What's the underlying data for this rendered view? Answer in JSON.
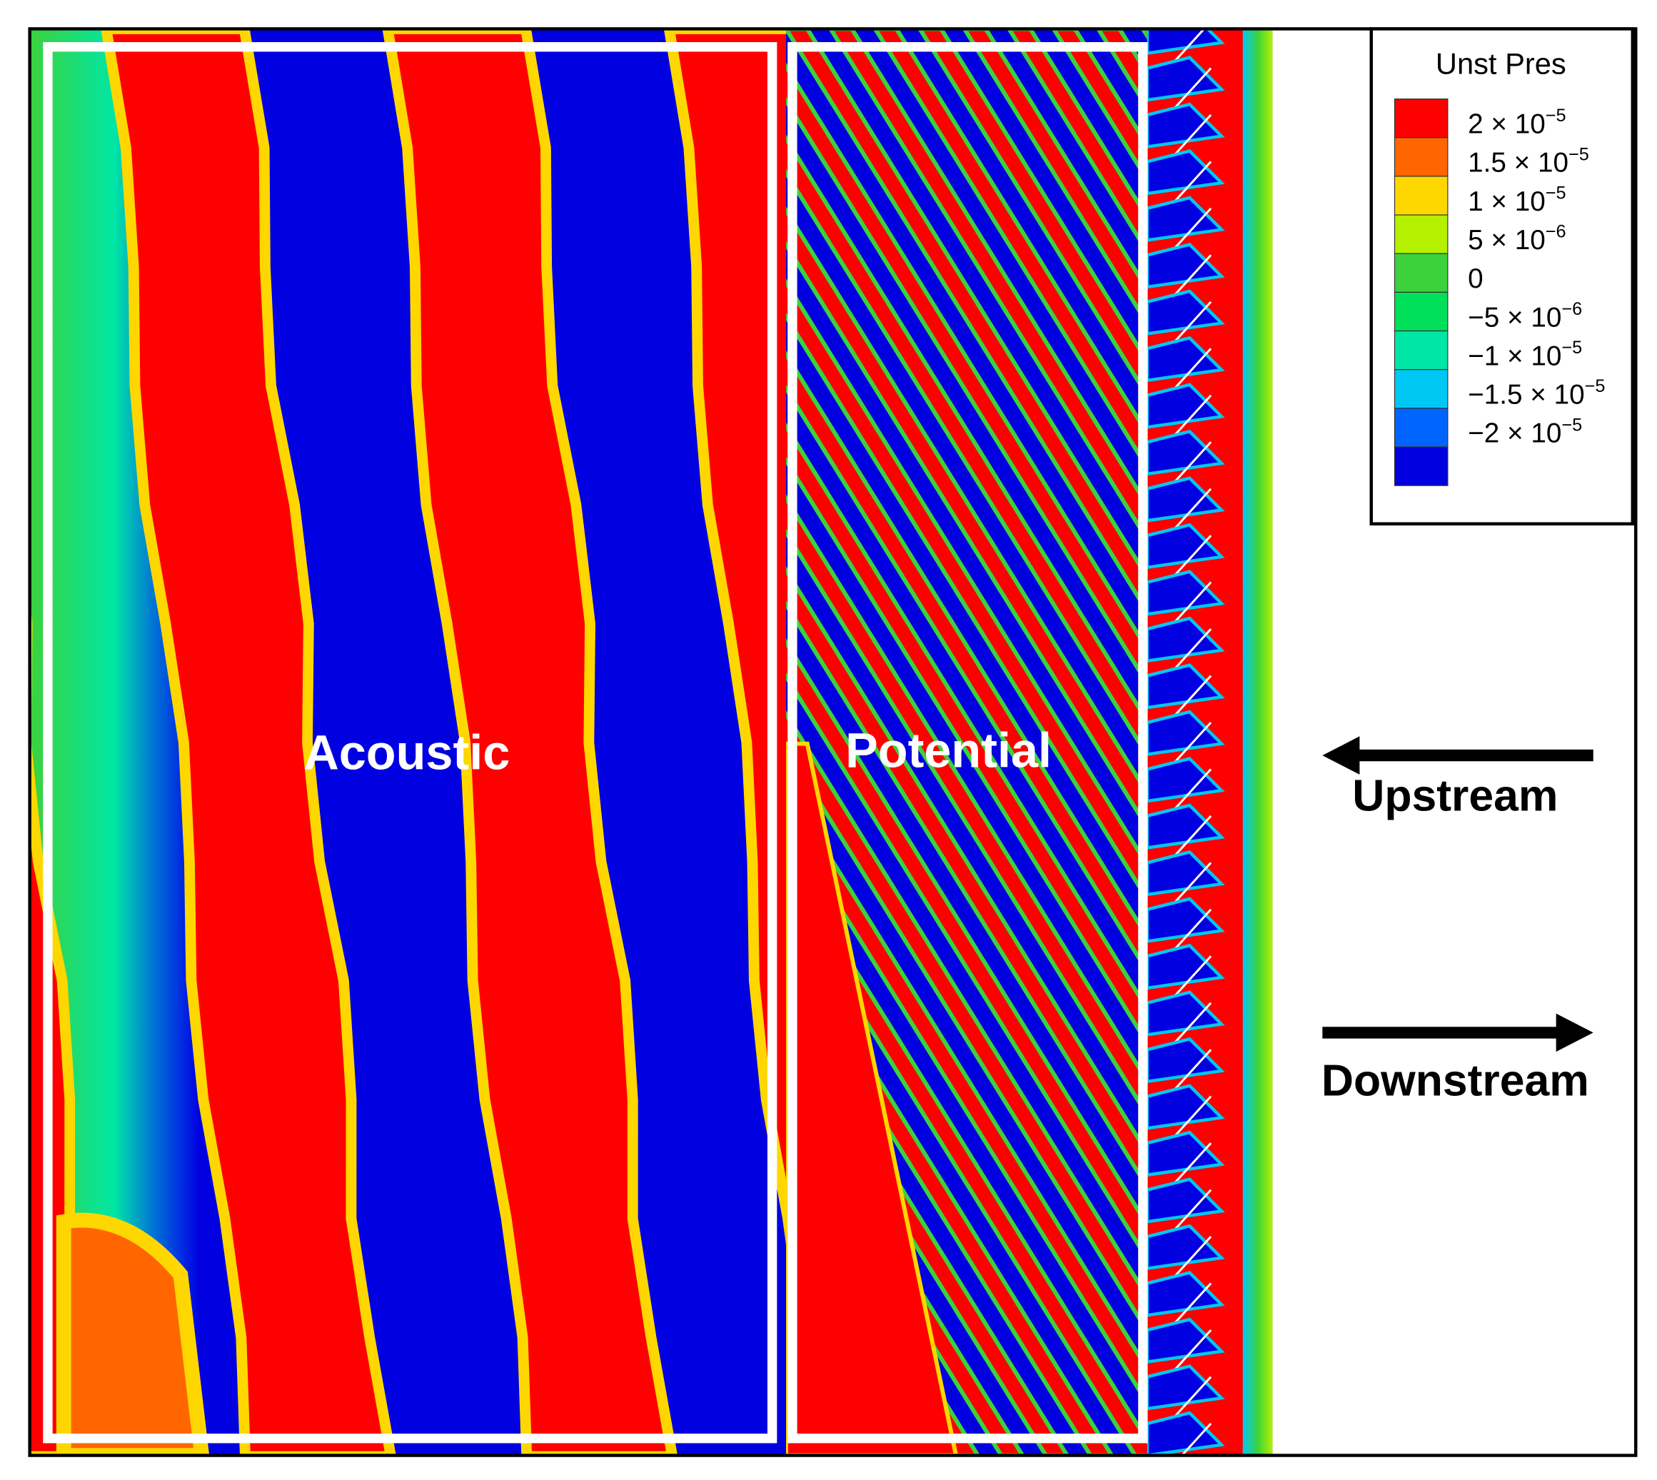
{
  "legend": {
    "title": "Unst Pres",
    "colors": [
      "#ff0000",
      "#ff6600",
      "#ffd700",
      "#b4f000",
      "#3cd23c",
      "#00e05a",
      "#00e6a5",
      "#00c8f5",
      "#0064ff",
      "#0000e0"
    ],
    "labels": [
      {
        "base": "2 × 10",
        "exponent": "−5"
      },
      {
        "base": "1.5 × 10",
        "exponent": "−5"
      },
      {
        "base": "1 × 10",
        "exponent": "−5"
      },
      {
        "base": "5 × 10",
        "exponent": "−6"
      },
      {
        "base": "0"
      },
      {
        "base": "−5 × 10",
        "exponent": "−6"
      },
      {
        "base": "−1 × 10",
        "exponent": "−5"
      },
      {
        "base": "−1.5 × 10",
        "exponent": "−5"
      },
      {
        "base": "−2 × 10",
        "exponent": "−5"
      }
    ]
  },
  "regions": [
    "Acoustic",
    "Potential"
  ],
  "arrows": [
    {
      "label": "Upstream"
    },
    {
      "label": "Downstream"
    }
  ]
}
